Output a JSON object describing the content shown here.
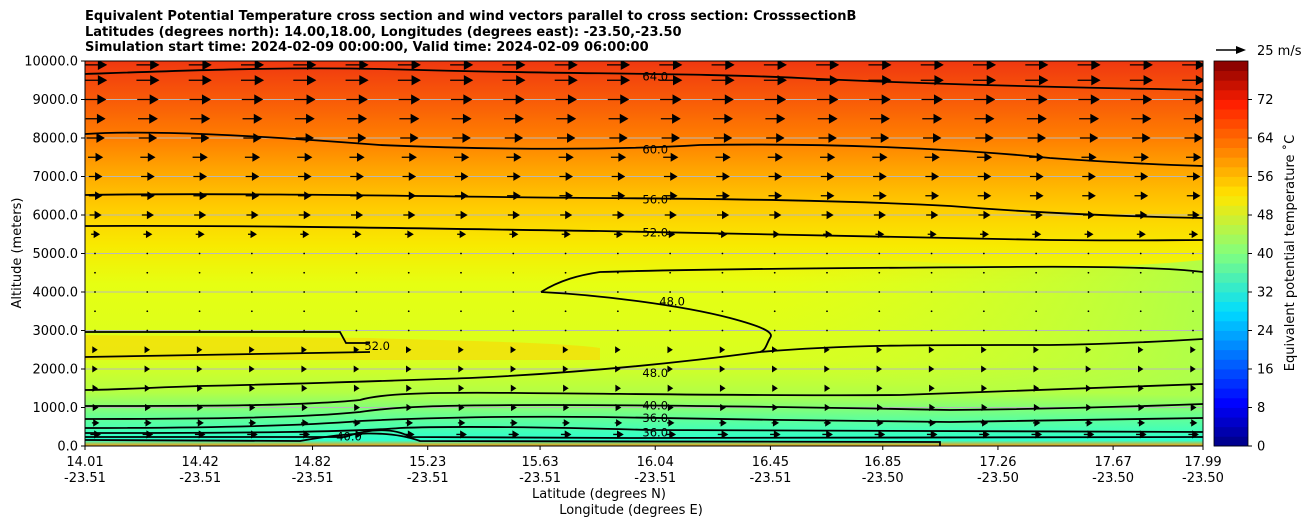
{
  "titles": {
    "line1": "Equivalent Potential Temperature cross section and wind vectors parallel to cross section: CrosssectionB",
    "line2": "Latitudes (degrees north): 14.00,18.00, Longitudes (degrees east): -23.50,-23.50",
    "line3": "Simulation start time: 2024-02-09 00:00:00, Valid time: 2024-02-09 06:00:00"
  },
  "chart_data": {
    "type": "contour",
    "ylabel": "Altitude (meters)",
    "xlabel_line1": "Latitude (degrees N)",
    "xlabel_line2": "Longitude (degrees E)",
    "ylim": [
      0,
      10000
    ],
    "y_ticks": [
      "0.0",
      "1000.0",
      "2000.0",
      "3000.0",
      "4000.0",
      "5000.0",
      "6000.0",
      "7000.0",
      "8000.0",
      "9000.0",
      "10000.0"
    ],
    "x_ticks": [
      {
        "lat": "14.01",
        "lon": "-23.51"
      },
      {
        "lat": "14.42",
        "lon": "-23.51"
      },
      {
        "lat": "14.82",
        "lon": "-23.51"
      },
      {
        "lat": "15.23",
        "lon": "-23.51"
      },
      {
        "lat": "15.63",
        "lon": "-23.51"
      },
      {
        "lat": "16.04",
        "lon": "-23.51"
      },
      {
        "lat": "16.45",
        "lon": "-23.51"
      },
      {
        "lat": "16.85",
        "lon": "-23.50"
      },
      {
        "lat": "17.26",
        "lon": "-23.50"
      },
      {
        "lat": "17.67",
        "lon": "-23.50"
      },
      {
        "lat": "17.99",
        "lon": "-23.50"
      }
    ],
    "colorbar": {
      "label": "Equivalent potential temperature $^\\circ$C",
      "label_text": "Equivalent potential temperature ˚C",
      "range": [
        0,
        80
      ],
      "ticks": [
        "0",
        "8",
        "16",
        "24",
        "32",
        "40",
        "48",
        "56",
        "64",
        "72"
      ],
      "colormap": "jet"
    },
    "quiver_key": {
      "label": "25 m/s"
    },
    "contour_labels": [
      {
        "text": "64.0",
        "lat": 16.04,
        "alt": 9600
      },
      {
        "text": "60.0",
        "lat": 16.04,
        "alt": 7700
      },
      {
        "text": "56.0",
        "lat": 16.04,
        "alt": 6400
      },
      {
        "text": "52.0",
        "lat": 16.04,
        "alt": 5550
      },
      {
        "text": "48.0",
        "lat": 16.1,
        "alt": 3750
      },
      {
        "text": "52.0",
        "lat": 15.05,
        "alt": 2600
      },
      {
        "text": "48.0",
        "lat": 16.04,
        "alt": 1900
      },
      {
        "text": "40.0",
        "lat": 16.04,
        "alt": 1050
      },
      {
        "text": "36.0",
        "lat": 16.04,
        "alt": 730
      },
      {
        "text": "36.0",
        "lat": 16.04,
        "alt": 350
      },
      {
        "text": "40.0",
        "lat": 14.95,
        "alt": 250
      }
    ],
    "wind_rows": [
      {
        "alt": 9900,
        "u": 14
      },
      {
        "alt": 9500,
        "u": 14
      },
      {
        "alt": 9000,
        "u": 13
      },
      {
        "alt": 8500,
        "u": 12
      },
      {
        "alt": 8000,
        "u": 11
      },
      {
        "alt": 7500,
        "u": 9
      },
      {
        "alt": 7000,
        "u": 8
      },
      {
        "alt": 6500,
        "u": 8
      },
      {
        "alt": 6000,
        "u": 7
      },
      {
        "alt": 5500,
        "u": 5
      },
      {
        "alt": 5000,
        "u": 1
      },
      {
        "alt": 4500,
        "u": 0.5
      },
      {
        "alt": 4000,
        "u": 0.5
      },
      {
        "alt": 3500,
        "u": 1
      },
      {
        "alt": 3000,
        "u": 1.5
      },
      {
        "alt": 2500,
        "u": 2
      },
      {
        "alt": 2000,
        "u": 2
      },
      {
        "alt": 1500,
        "u": 2.5
      },
      {
        "alt": 1000,
        "u": 3
      },
      {
        "alt": 600,
        "u": 4
      },
      {
        "alt": 300,
        "u": 6
      }
    ]
  }
}
